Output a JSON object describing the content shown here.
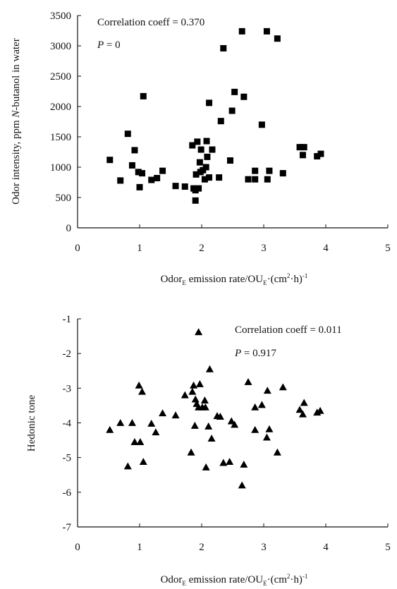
{
  "chart_data": [
    {
      "type": "scatter",
      "xlabel": {
        "pre": "Odor",
        "sub": "E",
        "mid1": " emission rate/OU",
        "sub2": "E",
        "mid2": "·(cm",
        "sup": "2",
        "mid3": "·h)",
        "sup2": "-1"
      },
      "ylabel": {
        "pre": "Odor intensity, ppm ",
        "italic": "N",
        "post": "-butanol in water"
      },
      "xlim": [
        0,
        5
      ],
      "ylim": [
        0,
        3500
      ],
      "xticks": [
        "0",
        "1",
        "2",
        "3",
        "4",
        "5"
      ],
      "yticks": [
        "0",
        "500",
        "1000",
        "1500",
        "2000",
        "2500",
        "3000",
        "3500"
      ],
      "marker": "square",
      "annotation_corr": "Correlation coeff = 0.370",
      "annotation_p_label": "P",
      "annotation_p_value": " = 0",
      "points": [
        [
          0.52,
          1120
        ],
        [
          0.69,
          780
        ],
        [
          0.81,
          1550
        ],
        [
          0.88,
          1030
        ],
        [
          0.92,
          1280
        ],
        [
          0.98,
          920
        ],
        [
          1.0,
          670
        ],
        [
          1.04,
          900
        ],
        [
          1.06,
          2170
        ],
        [
          1.19,
          790
        ],
        [
          1.28,
          820
        ],
        [
          1.37,
          940
        ],
        [
          1.58,
          690
        ],
        [
          1.73,
          680
        ],
        [
          1.85,
          1360
        ],
        [
          1.87,
          650
        ],
        [
          1.9,
          450
        ],
        [
          1.9,
          620
        ],
        [
          1.91,
          880
        ],
        [
          1.93,
          1420
        ],
        [
          1.95,
          650
        ],
        [
          1.97,
          1080
        ],
        [
          1.98,
          920
        ],
        [
          1.99,
          1290
        ],
        [
          2.02,
          950
        ],
        [
          2.05,
          800
        ],
        [
          2.07,
          1000
        ],
        [
          2.08,
          1430
        ],
        [
          2.09,
          1170
        ],
        [
          2.12,
          830
        ],
        [
          2.12,
          2060
        ],
        [
          2.17,
          1290
        ],
        [
          2.28,
          830
        ],
        [
          2.31,
          1760
        ],
        [
          2.35,
          2960
        ],
        [
          2.46,
          1110
        ],
        [
          2.49,
          1930
        ],
        [
          2.53,
          2240
        ],
        [
          2.65,
          3240
        ],
        [
          2.68,
          2160
        ],
        [
          2.75,
          800
        ],
        [
          2.86,
          940
        ],
        [
          2.86,
          800
        ],
        [
          2.97,
          1700
        ],
        [
          3.05,
          3240
        ],
        [
          3.06,
          800
        ],
        [
          3.09,
          940
        ],
        [
          3.22,
          3120
        ],
        [
          3.31,
          900
        ],
        [
          3.58,
          1330
        ],
        [
          3.63,
          1200
        ],
        [
          3.65,
          1330
        ],
        [
          3.86,
          1180
        ],
        [
          3.92,
          1220
        ]
      ]
    },
    {
      "type": "scatter",
      "xlabel": {
        "pre": "Odor",
        "sub": "E",
        "mid1": " emission rate/OU",
        "sub2": "E",
        "mid2": "·(cm",
        "sup": "2",
        "mid3": "·h)",
        "sup2": "-1"
      },
      "ylabel": "Hedonic tone",
      "xlim": [
        0,
        5
      ],
      "ylim": [
        -7,
        -1
      ],
      "xticks": [
        "0",
        "1",
        "2",
        "3",
        "4",
        "5"
      ],
      "yticks": [
        "-1",
        "-2",
        "-3",
        "-4",
        "-5",
        "-6",
        "-7"
      ],
      "marker": "triangle",
      "annotation_corr": "Correlation coeff = 0.011",
      "annotation_p_label": "P",
      "annotation_p_value": " = 0.917",
      "points": [
        [
          0.52,
          -4.2
        ],
        [
          0.69,
          -4.0
        ],
        [
          0.81,
          -5.25
        ],
        [
          0.88,
          -4.0
        ],
        [
          0.92,
          -4.55
        ],
        [
          0.99,
          -2.92
        ],
        [
          1.01,
          -4.55
        ],
        [
          1.04,
          -3.1
        ],
        [
          1.06,
          -5.12
        ],
        [
          1.19,
          -4.02
        ],
        [
          1.26,
          -4.27
        ],
        [
          1.37,
          -3.72
        ],
        [
          1.58,
          -3.78
        ],
        [
          1.73,
          -3.2
        ],
        [
          1.83,
          -4.85
        ],
        [
          1.85,
          -3.1
        ],
        [
          1.87,
          -2.92
        ],
        [
          1.89,
          -4.08
        ],
        [
          1.9,
          -3.32
        ],
        [
          1.92,
          -3.45
        ],
        [
          1.95,
          -3.55
        ],
        [
          1.95,
          -1.38
        ],
        [
          1.97,
          -2.88
        ],
        [
          2.01,
          -3.55
        ],
        [
          2.05,
          -3.35
        ],
        [
          2.06,
          -3.55
        ],
        [
          2.07,
          -5.28
        ],
        [
          2.11,
          -4.1
        ],
        [
          2.13,
          -2.45
        ],
        [
          2.16,
          -4.45
        ],
        [
          2.25,
          -3.8
        ],
        [
          2.3,
          -3.82
        ],
        [
          2.35,
          -5.15
        ],
        [
          2.45,
          -5.12
        ],
        [
          2.48,
          -3.95
        ],
        [
          2.53,
          -4.05
        ],
        [
          2.65,
          -5.8
        ],
        [
          2.68,
          -5.2
        ],
        [
          2.75,
          -2.82
        ],
        [
          2.86,
          -3.55
        ],
        [
          2.86,
          -4.2
        ],
        [
          2.97,
          -3.48
        ],
        [
          3.05,
          -4.42
        ],
        [
          3.06,
          -3.07
        ],
        [
          3.09,
          -4.18
        ],
        [
          3.22,
          -4.85
        ],
        [
          3.31,
          -2.97
        ],
        [
          3.58,
          -3.62
        ],
        [
          3.63,
          -3.75
        ],
        [
          3.65,
          -3.42
        ],
        [
          3.86,
          -3.7
        ],
        [
          3.91,
          -3.65
        ]
      ]
    }
  ]
}
